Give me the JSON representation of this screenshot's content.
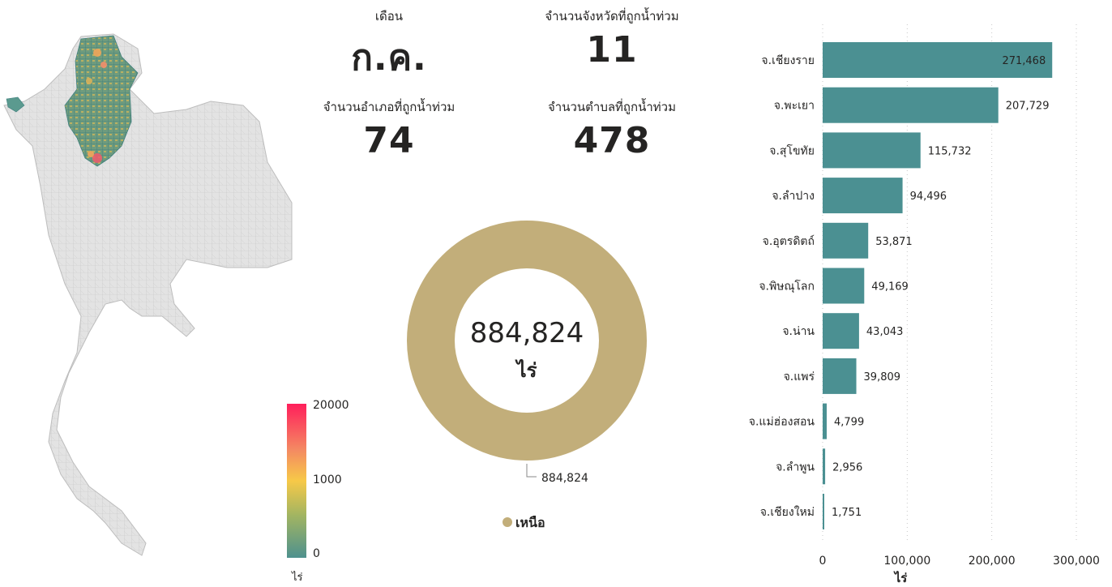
{
  "kpis": {
    "month_label": "เดือน",
    "month_value": "ก.ค.",
    "provinces_label": "จำนวนจังหวัดที่ถูกน้ำท่วม",
    "provinces_value": "11",
    "districts_label": "จำนวนอำเภอที่ถูกน้ำท่วม",
    "districts_value": "74",
    "subdistricts_label": "จำนวนตำบลที่ถูกน้ำท่วม",
    "subdistricts_value": "478"
  },
  "map_legend": {
    "ticks": [
      "20000",
      "1000",
      "0"
    ],
    "unit": "ไร่",
    "colors": [
      "#FF1F5B",
      "#F7C948",
      "#4E918E"
    ]
  },
  "colors": {
    "bar": "#4B9092",
    "donut": "#C2AE7A",
    "map_base": "#E3E3E3",
    "map_stroke": "#BDBDBD"
  },
  "donut": {
    "center_value": "884,824",
    "center_unit": "ไร่",
    "slice_label": "884,824",
    "legend_label": "เหนือ"
  },
  "chart_data": [
    {
      "type": "pie",
      "categories": [
        "เหนือ"
      ],
      "values": [
        884824
      ]
    },
    {
      "type": "bar",
      "orientation": "horizontal",
      "categories": [
        "จ.เชียงราย",
        "จ.พะเยา",
        "จ.สุโขทัย",
        "จ.ลำปาง",
        "จ.อุตรดิตถ์",
        "จ.พิษณุโลก",
        "จ.น่าน",
        "จ.แพร่",
        "จ.แม่ฮ่องสอน",
        "จ.ลำพูน",
        "จ.เชียงใหม่"
      ],
      "values": [
        271468,
        207729,
        115732,
        94496,
        53871,
        49169,
        43043,
        39809,
        4799,
        2956,
        1751
      ],
      "value_labels": [
        "271,468",
        "207,729",
        "115,732",
        "94,496",
        "53,871",
        "49,169",
        "43,043",
        "39,809",
        "4,799",
        "2,956",
        "1,751"
      ],
      "xlim": [
        0,
        300000
      ],
      "x_ticks": [
        "0",
        "100,000",
        "200,000",
        "300,000"
      ],
      "xlabel": "ไร่",
      "grid": "vertical dotted"
    }
  ]
}
